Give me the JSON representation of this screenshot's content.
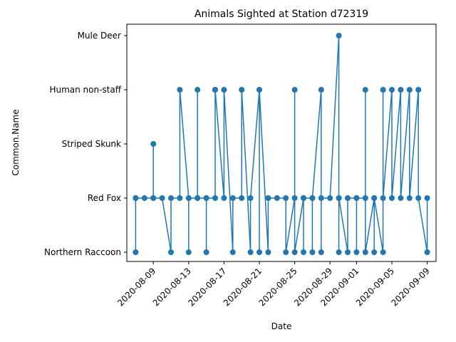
{
  "chart_data": {
    "type": "line",
    "title": "Animals Sighted at Station d72319",
    "xlabel": "Date",
    "ylabel": "Common.Name",
    "categories": [
      "Northern Raccoon",
      "Red Fox",
      "Striped Skunk",
      "Human non-staff",
      "Mule Deer"
    ],
    "xlim": [
      "2020-08-06",
      "2020-09-10"
    ],
    "x_ticks": [
      "2020-08-09",
      "2020-08-13",
      "2020-08-17",
      "2020-08-21",
      "2020-08-25",
      "2020-08-29",
      "2020-09-01",
      "2020-09-05",
      "2020-09-09"
    ],
    "grid": false,
    "color": "#1f77b4",
    "series": [
      {
        "points": [
          {
            "x": "2020-08-07",
            "y": "Red Fox"
          },
          {
            "x": "2020-08-07",
            "y": "Northern Raccoon"
          },
          {
            "x": "2020-08-07",
            "y": "Red Fox"
          },
          {
            "x": "2020-08-08",
            "y": "Red Fox"
          },
          {
            "x": "2020-08-09",
            "y": "Red Fox"
          },
          {
            "x": "2020-08-09",
            "y": "Striped Skunk"
          },
          {
            "x": "2020-08-09",
            "y": "Red Fox"
          },
          {
            "x": "2020-08-10",
            "y": "Red Fox"
          },
          {
            "x": "2020-08-11",
            "y": "Northern Raccoon"
          },
          {
            "x": "2020-08-11",
            "y": "Red Fox"
          },
          {
            "x": "2020-08-12",
            "y": "Red Fox"
          },
          {
            "x": "2020-08-12",
            "y": "Human non-staff"
          },
          {
            "x": "2020-08-13",
            "y": "Red Fox"
          },
          {
            "x": "2020-08-13",
            "y": "Northern Raccoon"
          },
          {
            "x": "2020-08-13",
            "y": "Red Fox"
          },
          {
            "x": "2020-08-14",
            "y": "Red Fox"
          },
          {
            "x": "2020-08-14",
            "y": "Human non-staff"
          },
          {
            "x": "2020-08-14",
            "y": "Red Fox"
          },
          {
            "x": "2020-08-15",
            "y": "Red Fox"
          },
          {
            "x": "2020-08-15",
            "y": "Northern Raccoon"
          },
          {
            "x": "2020-08-15",
            "y": "Red Fox"
          },
          {
            "x": "2020-08-16",
            "y": "Red Fox"
          },
          {
            "x": "2020-08-16",
            "y": "Human non-staff"
          },
          {
            "x": "2020-08-16",
            "y": "Human non-staff"
          },
          {
            "x": "2020-08-17",
            "y": "Red Fox"
          },
          {
            "x": "2020-08-17",
            "y": "Human non-staff"
          },
          {
            "x": "2020-08-18",
            "y": "Northern Raccoon"
          },
          {
            "x": "2020-08-18",
            "y": "Red Fox"
          },
          {
            "x": "2020-08-19",
            "y": "Red Fox"
          },
          {
            "x": "2020-08-19",
            "y": "Human non-staff"
          },
          {
            "x": "2020-08-20",
            "y": "Northern Raccoon"
          },
          {
            "x": "2020-08-20",
            "y": "Red Fox"
          },
          {
            "x": "2020-08-21",
            "y": "Human non-staff"
          },
          {
            "x": "2020-08-21",
            "y": "Northern Raccoon"
          },
          {
            "x": "2020-08-21",
            "y": "Human non-staff"
          },
          {
            "x": "2020-08-22",
            "y": "Northern Raccoon"
          },
          {
            "x": "2020-08-22",
            "y": "Red Fox"
          },
          {
            "x": "2020-08-23",
            "y": "Red Fox"
          },
          {
            "x": "2020-08-24",
            "y": "Red Fox"
          },
          {
            "x": "2020-08-24",
            "y": "Northern Raccoon"
          },
          {
            "x": "2020-08-25",
            "y": "Red Fox"
          },
          {
            "x": "2020-08-25",
            "y": "Human non-staff"
          },
          {
            "x": "2020-08-25",
            "y": "Northern Raccoon"
          },
          {
            "x": "2020-08-26",
            "y": "Red Fox"
          },
          {
            "x": "2020-08-26",
            "y": "Northern Raccoon"
          },
          {
            "x": "2020-08-26",
            "y": "Red Fox"
          },
          {
            "x": "2020-08-27",
            "y": "Red Fox"
          },
          {
            "x": "2020-08-27",
            "y": "Northern Raccoon"
          },
          {
            "x": "2020-08-27",
            "y": "Red Fox"
          },
          {
            "x": "2020-08-28",
            "y": "Human non-staff"
          },
          {
            "x": "2020-08-28",
            "y": "Northern Raccoon"
          },
          {
            "x": "2020-08-28",
            "y": "Red Fox"
          },
          {
            "x": "2020-08-29",
            "y": "Red Fox"
          },
          {
            "x": "2020-08-30",
            "y": "Mule Deer"
          },
          {
            "x": "2020-08-30",
            "y": "Red Fox"
          },
          {
            "x": "2020-08-30",
            "y": "Northern Raccoon"
          },
          {
            "x": "2020-08-30",
            "y": "Red Fox"
          },
          {
            "x": "2020-08-31",
            "y": "Northern Raccoon"
          },
          {
            "x": "2020-08-31",
            "y": "Red Fox"
          },
          {
            "x": "2020-09-01",
            "y": "Red Fox"
          },
          {
            "x": "2020-09-01",
            "y": "Northern Raccoon"
          },
          {
            "x": "2020-09-01",
            "y": "Red Fox"
          },
          {
            "x": "2020-09-02",
            "y": "Red Fox"
          },
          {
            "x": "2020-09-02",
            "y": "Human non-staff"
          },
          {
            "x": "2020-09-02",
            "y": "Northern Raccoon"
          },
          {
            "x": "2020-09-03",
            "y": "Red Fox"
          },
          {
            "x": "2020-09-03",
            "y": "Northern Raccoon"
          },
          {
            "x": "2020-09-03",
            "y": "Red Fox"
          },
          {
            "x": "2020-09-04",
            "y": "Northern Raccoon"
          },
          {
            "x": "2020-09-04",
            "y": "Human non-staff"
          },
          {
            "x": "2020-09-04",
            "y": "Red Fox"
          },
          {
            "x": "2020-09-05",
            "y": "Human non-staff"
          },
          {
            "x": "2020-09-05",
            "y": "Red Fox"
          },
          {
            "x": "2020-09-06",
            "y": "Human non-staff"
          },
          {
            "x": "2020-09-06",
            "y": "Red Fox"
          },
          {
            "x": "2020-09-07",
            "y": "Human non-staff"
          },
          {
            "x": "2020-09-07",
            "y": "Red Fox"
          },
          {
            "x": "2020-09-08",
            "y": "Human non-staff"
          },
          {
            "x": "2020-09-08",
            "y": "Red Fox"
          },
          {
            "x": "2020-09-09",
            "y": "Northern Raccoon"
          },
          {
            "x": "2020-09-09",
            "y": "Red Fox"
          }
        ]
      }
    ]
  }
}
